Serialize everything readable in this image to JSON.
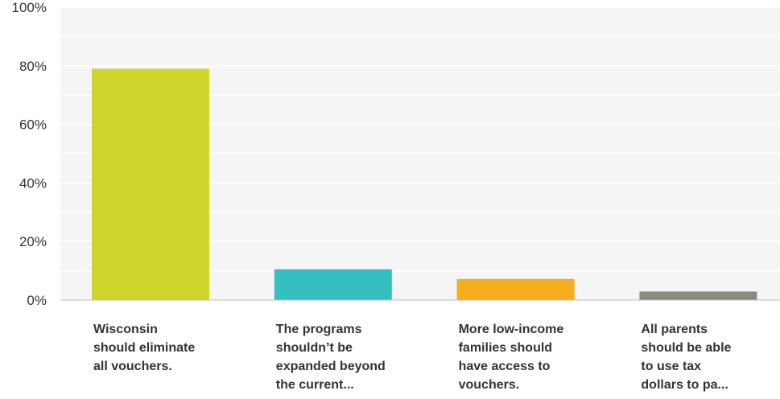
{
  "chart_data": {
    "type": "bar",
    "categories": [
      "Wisconsin\nshould eliminate\nall vouchers.",
      "The programs\nshouldn’t be\nexpanded beyond\nthe current...",
      "More low-income\nfamilies should\nhave access to\nvouchers.",
      "All parents\nshould be able\nto use tax\ndollars to pa..."
    ],
    "values": [
      79,
      10.5,
      7.2,
      2.9
    ],
    "colors": [
      "#cfd52a",
      "#35bfc1",
      "#f6ae1f",
      "#8a8c7c"
    ],
    "ylim": [
      0,
      100
    ],
    "yticks": [
      0,
      20,
      40,
      60,
      80,
      100
    ],
    "ytick_labels": [
      "0%",
      "20%",
      "40%",
      "60%",
      "80%",
      "100%"
    ],
    "grid": true,
    "background": "#f5f5f5"
  }
}
